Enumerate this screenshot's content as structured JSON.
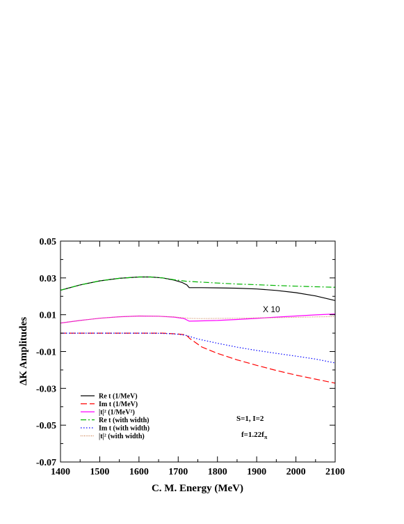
{
  "chart_data": {
    "type": "line",
    "title": "",
    "xlabel": "C. M. Energy (MeV)",
    "ylabel": "ΔK Amplitudes",
    "xlim": [
      1400,
      2100
    ],
    "ylim": [
      -0.07,
      0.05
    ],
    "xticks": [
      "1400",
      "1500",
      "1600",
      "1700",
      "1800",
      "1900",
      "2000",
      "2100"
    ],
    "yticks": [
      "-0.07",
      "-0.05",
      "-0.03",
      "-0.01",
      "0.01",
      "0.03",
      "0.05"
    ],
    "grid": false,
    "legend_position": "bottom-left",
    "annotations": {
      "x10": "X 10",
      "state": "S=1, I=2",
      "coupling": "f=1.22f",
      "coupling_sub": "π"
    },
    "series": [
      {
        "name": "Re t (1/MeV)",
        "color": "#000000",
        "dash": "solid",
        "x": [
          1400,
          1450,
          1500,
          1550,
          1600,
          1630,
          1660,
          1690,
          1710,
          1722,
          1728,
          1760,
          1800,
          1850,
          1900,
          1950,
          2000,
          2050,
          2100
        ],
        "y": [
          0.0233,
          0.0262,
          0.0284,
          0.0298,
          0.0305,
          0.0305,
          0.03,
          0.0288,
          0.0275,
          0.0262,
          0.0247,
          0.0247,
          0.0246,
          0.0244,
          0.024,
          0.0232,
          0.022,
          0.0202,
          0.0177
        ]
      },
      {
        "name": "Im t (1/MeV)",
        "color": "#ff0000",
        "dash": "long",
        "x": [
          1400,
          1500,
          1600,
          1660,
          1700,
          1720,
          1730,
          1760,
          1800,
          1850,
          1900,
          1950,
          2000,
          2050,
          2100
        ],
        "y": [
          0.0,
          0.0,
          0.0,
          0.0,
          -0.0005,
          -0.001,
          -0.003,
          -0.0075,
          -0.011,
          -0.0145,
          -0.0175,
          -0.0203,
          -0.0228,
          -0.025,
          -0.0272
        ]
      },
      {
        "name": "|t|² (1/MeV²)",
        "color": "#ff00ff",
        "dash": "solid",
        "x": [
          1400,
          1450,
          1500,
          1550,
          1600,
          1650,
          1690,
          1715,
          1728,
          1750,
          1800,
          1850,
          1900,
          1950,
          2000,
          2050,
          2100
        ],
        "y": [
          0.0055,
          0.0069,
          0.0081,
          0.0089,
          0.0093,
          0.0092,
          0.0087,
          0.0079,
          0.0065,
          0.0066,
          0.0069,
          0.0074,
          0.008,
          0.0087,
          0.0093,
          0.0099,
          0.0104
        ]
      },
      {
        "name": "Re t (with width)",
        "color": "#00b400",
        "dash": "dashdot",
        "x": [
          1400,
          1450,
          1500,
          1550,
          1600,
          1630,
          1660,
          1690,
          1720,
          1750,
          1800,
          1850,
          1900,
          1950,
          2000,
          2050,
          2100
        ],
        "y": [
          0.0233,
          0.0262,
          0.0284,
          0.0298,
          0.0305,
          0.0305,
          0.03,
          0.029,
          0.0282,
          0.0278,
          0.0272,
          0.0267,
          0.0263,
          0.0259,
          0.0255,
          0.0252,
          0.0249
        ]
      },
      {
        "name": "Im t (with width)",
        "color": "#0000ff",
        "dash": "dot",
        "x": [
          1400,
          1500,
          1600,
          1650,
          1680,
          1700,
          1720,
          1750,
          1800,
          1850,
          1900,
          1950,
          2000,
          2050,
          2100
        ],
        "y": [
          0.0,
          0.0,
          0.0,
          -0.0001,
          -0.0003,
          -0.0006,
          -0.0012,
          -0.0032,
          -0.0055,
          -0.0076,
          -0.0094,
          -0.011,
          -0.0125,
          -0.0141,
          -0.0162
        ]
      },
      {
        "name": "|t|² (with width)",
        "color": "#c87846",
        "dash": "finedot",
        "x": [
          1400,
          1450,
          1500,
          1550,
          1600,
          1650,
          1690,
          1715,
          1730,
          1760,
          1800,
          1850,
          1900,
          1950,
          2000,
          2050,
          2100
        ],
        "y": [
          0.0055,
          0.0069,
          0.0081,
          0.0089,
          0.0093,
          0.0092,
          0.0088,
          0.0083,
          0.008,
          0.0079,
          0.008,
          0.0081,
          0.0083,
          0.0084,
          0.0086,
          0.0088,
          0.009
        ]
      }
    ]
  }
}
